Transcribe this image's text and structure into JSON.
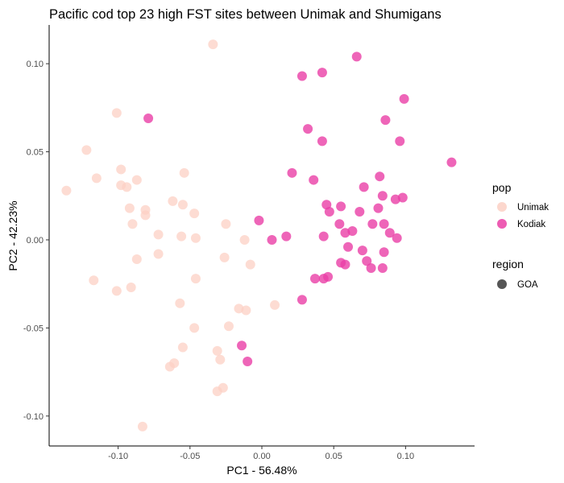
{
  "chart_data": {
    "type": "scatter",
    "title": "Pacific cod top 23 high FST sites between Unimak and Shumigans",
    "xlabel": "PC1 - 56.48%",
    "ylabel": "PC2 - 42.23%",
    "xlim": [
      -0.148,
      0.148
    ],
    "ylim": [
      -0.117,
      0.122
    ],
    "xticks": [
      -0.1,
      -0.05,
      0.0,
      0.05,
      0.1
    ],
    "xtick_labels": [
      "-0.10",
      "-0.05",
      "0.00",
      "0.05",
      "0.10"
    ],
    "yticks": [
      -0.1,
      -0.05,
      0.0,
      0.05,
      0.1
    ],
    "ytick_labels": [
      "-0.10",
      "-0.05",
      "0.00",
      "0.05",
      "0.10"
    ],
    "grid": false,
    "legend_placement": "right",
    "legends": [
      {
        "title": "pop",
        "entries": [
          {
            "label": "Unimak",
            "color": "#fcd0c4"
          },
          {
            "label": "Kodiak",
            "color": "#ea3fa6"
          }
        ]
      },
      {
        "title": "region",
        "entries": [
          {
            "label": "GOA",
            "color": "#555555"
          }
        ]
      }
    ],
    "series": [
      {
        "name": "Unimak",
        "color": "#fcd0c4",
        "points": [
          [
            -0.034,
            0.111
          ],
          [
            -0.101,
            0.072
          ],
          [
            -0.122,
            0.051
          ],
          [
            -0.136,
            0.028
          ],
          [
            -0.115,
            0.035
          ],
          [
            -0.098,
            0.04
          ],
          [
            -0.098,
            0.031
          ],
          [
            -0.094,
            0.03
          ],
          [
            -0.087,
            0.034
          ],
          [
            -0.054,
            0.038
          ],
          [
            -0.062,
            0.022
          ],
          [
            -0.055,
            0.02
          ],
          [
            -0.092,
            0.018
          ],
          [
            -0.081,
            0.017
          ],
          [
            -0.081,
            0.014
          ],
          [
            -0.047,
            0.015
          ],
          [
            -0.09,
            0.009
          ],
          [
            -0.025,
            0.009
          ],
          [
            -0.072,
            0.003
          ],
          [
            -0.056,
            0.002
          ],
          [
            -0.046,
            0.001
          ],
          [
            -0.012,
            0.0
          ],
          [
            -0.087,
            -0.011
          ],
          [
            -0.072,
            -0.008
          ],
          [
            -0.026,
            -0.01
          ],
          [
            -0.008,
            -0.014
          ],
          [
            -0.117,
            -0.023
          ],
          [
            -0.101,
            -0.029
          ],
          [
            -0.091,
            -0.027
          ],
          [
            -0.046,
            -0.022
          ],
          [
            -0.057,
            -0.036
          ],
          [
            0.009,
            -0.037
          ],
          [
            -0.016,
            -0.039
          ],
          [
            -0.011,
            -0.04
          ],
          [
            -0.047,
            -0.05
          ],
          [
            -0.023,
            -0.049
          ],
          [
            -0.055,
            -0.061
          ],
          [
            -0.031,
            -0.063
          ],
          [
            -0.029,
            -0.068
          ],
          [
            -0.064,
            -0.072
          ],
          [
            -0.061,
            -0.07
          ],
          [
            -0.027,
            -0.084
          ],
          [
            -0.031,
            -0.086
          ],
          [
            -0.083,
            -0.106
          ]
        ]
      },
      {
        "name": "Kodiak",
        "color": "#ea3fa6",
        "points": [
          [
            -0.079,
            0.069
          ],
          [
            0.066,
            0.104
          ],
          [
            0.042,
            0.095
          ],
          [
            0.028,
            0.093
          ],
          [
            0.099,
            0.08
          ],
          [
            0.086,
            0.068
          ],
          [
            0.032,
            0.063
          ],
          [
            0.042,
            0.056
          ],
          [
            0.096,
            0.056
          ],
          [
            0.132,
            0.044
          ],
          [
            0.021,
            0.038
          ],
          [
            0.082,
            0.036
          ],
          [
            0.036,
            0.034
          ],
          [
            0.071,
            0.03
          ],
          [
            0.084,
            0.025
          ],
          [
            0.093,
            0.023
          ],
          [
            0.098,
            0.024
          ],
          [
            0.045,
            0.02
          ],
          [
            0.055,
            0.019
          ],
          [
            0.081,
            0.018
          ],
          [
            0.047,
            0.016
          ],
          [
            0.068,
            0.016
          ],
          [
            0.077,
            0.009
          ],
          [
            0.085,
            0.009
          ],
          [
            -0.002,
            0.011
          ],
          [
            0.054,
            0.009
          ],
          [
            0.058,
            0.004
          ],
          [
            0.063,
            0.005
          ],
          [
            0.089,
            0.004
          ],
          [
            0.007,
            0.0
          ],
          [
            0.017,
            0.002
          ],
          [
            0.043,
            0.002
          ],
          [
            0.094,
            0.001
          ],
          [
            0.06,
            -0.004
          ],
          [
            0.07,
            -0.006
          ],
          [
            0.085,
            -0.007
          ],
          [
            0.055,
            -0.013
          ],
          [
            0.058,
            -0.014
          ],
          [
            0.073,
            -0.012
          ],
          [
            0.076,
            -0.016
          ],
          [
            0.084,
            -0.016
          ],
          [
            0.037,
            -0.022
          ],
          [
            0.043,
            -0.022
          ],
          [
            0.046,
            -0.021
          ],
          [
            0.028,
            -0.034
          ],
          [
            -0.014,
            -0.06
          ],
          [
            -0.01,
            -0.069
          ]
        ]
      }
    ]
  }
}
